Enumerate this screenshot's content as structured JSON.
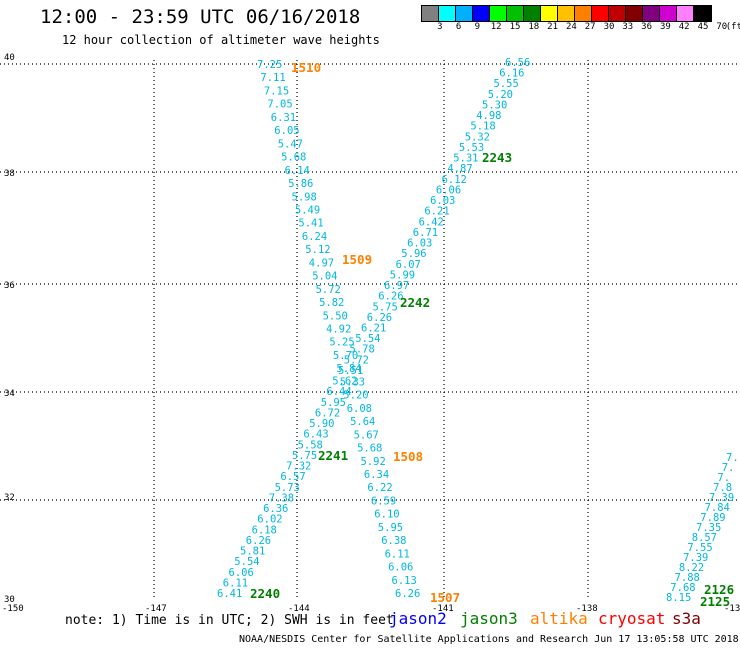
{
  "title": "12:00 - 23:59 UTC 06/16/2018",
  "subtitle": "12 hour collection of altimeter wave heights",
  "legend": {
    "colors": [
      "#808080",
      "#00ffff",
      "#00b0ff",
      "#0000ff",
      "#00ff00",
      "#00c000",
      "#008000",
      "#ffff00",
      "#ffc000",
      "#ff8000",
      "#ff0000",
      "#c00000",
      "#800000",
      "#800080",
      "#d000d0",
      "#ff80ff",
      "#000000"
    ],
    "labels": [
      "3",
      "6",
      "9",
      "12",
      "15",
      "18",
      "21",
      "24",
      "27",
      "30",
      "33",
      "36",
      "39",
      "42",
      "45",
      "70",
      "(ft)"
    ]
  },
  "note": "note: 1) Time is in UTC; 2) SWH is in feet",
  "missions": [
    {
      "name": "jason2",
      "color": "#0000ff"
    },
    {
      "name": "jason3",
      "color": "#008000"
    },
    {
      "name": "altika",
      "color": "#ff8000"
    },
    {
      "name": "cryosat",
      "color": "#ff0000"
    },
    {
      "name": "s3a",
      "color": "#800000"
    }
  ],
  "footer": "NOAA/NESDIS Center for Satellite Applications and Research   Jun 17 13:05:58 UTC 2018",
  "axes": {
    "x_ticks": [
      "-150",
      "-147",
      "-144",
      "-141",
      "-138",
      "-13"
    ],
    "y_ticks": [
      "40",
      "38",
      "36",
      "34",
      "32",
      "30"
    ]
  },
  "tracks": [
    {
      "id": "track-1510",
      "label": "1510",
      "label_color": "#ff8000",
      "values": [
        "7.25",
        "7.11",
        "7.15",
        "7.05",
        "6.31",
        "6.05",
        "5.47",
        "5.68",
        "6.14",
        "5.86",
        "5.98",
        "5.49",
        "5.41",
        "6.24",
        "5.12",
        "4.97",
        "5.04",
        "5.72",
        "5.82",
        "5.50",
        "4.92",
        "5.25",
        "5.70",
        "5.84",
        "5.33",
        "5.20",
        "6.08",
        "5.64",
        "5.67",
        "5.68",
        "5.92",
        "6.34",
        "6.22",
        "6.59",
        "6.10",
        "5.95",
        "6.38",
        "6.11",
        "6.06",
        "6.13",
        "6.26"
      ]
    },
    {
      "id": "track-1509",
      "label": "1509",
      "label_color": "#ff8000",
      "values": []
    },
    {
      "id": "track-1508",
      "label": "1508",
      "label_color": "#ff8000",
      "values": []
    },
    {
      "id": "track-1507",
      "label": "1507",
      "label_color": "#ff8000",
      "values": []
    },
    {
      "id": "track-2243",
      "label": "2243",
      "label_color": "#008000",
      "values": [
        "6.56",
        "6.16",
        "5.55",
        "5.20",
        "5.30",
        "4.98",
        "5.18",
        "5.32",
        "5.53",
        "5.31",
        "4.87",
        "6.12",
        "6.06",
        "6.03",
        "6.21",
        "6.42",
        "6.71",
        "6.03",
        "5.96",
        "6.07",
        "5.99",
        "6.97",
        "6.26",
        "5.75",
        "6.26",
        "6.21",
        "5.54",
        "5.78",
        "5.72",
        "5.51",
        "5.62",
        "6.44",
        "5.95",
        "6.72",
        "5.90",
        "6.43",
        "5.58",
        "5.75",
        "7.32",
        "6.57",
        "5.73",
        "7.38",
        "6.36",
        "6.02",
        "6.18",
        "6.26",
        "5.81",
        "5.54",
        "6.06",
        "6.11",
        "6.41"
      ]
    },
    {
      "id": "track-2242",
      "label": "2242",
      "label_color": "#008000",
      "values": []
    },
    {
      "id": "track-2241",
      "label": "2241",
      "label_color": "#008000",
      "values": []
    },
    {
      "id": "track-2240",
      "label": "2240",
      "label_color": "#008000",
      "values": []
    },
    {
      "id": "track-2126",
      "label": "2126",
      "label_color": "#008000",
      "values": [
        "7.",
        "7.",
        "7.",
        "7.8",
        "7.39",
        "7.84",
        "7.89",
        "7.35",
        "8.57",
        "7.55",
        "7.39",
        "8.22",
        "7.88",
        "7.68",
        "8.15"
      ]
    },
    {
      "id": "track-2125",
      "label": "2125",
      "label_color": "#008000",
      "values": []
    }
  ]
}
